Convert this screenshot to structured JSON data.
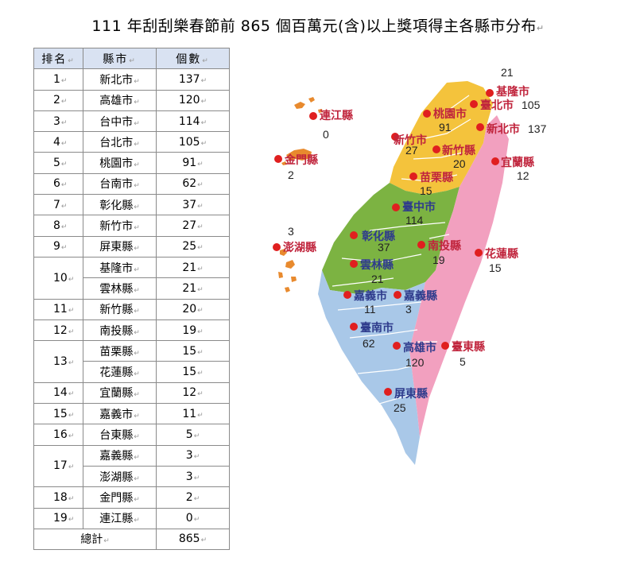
{
  "title": "111 年刮刮樂春節前 865 個百萬元(含)以上獎項得主各縣市分布",
  "table": {
    "headers": [
      "排名",
      "縣市",
      "個數"
    ],
    "rows": [
      {
        "rank": "1",
        "county": "新北市",
        "count": "137"
      },
      {
        "rank": "2",
        "county": "高雄市",
        "count": "120"
      },
      {
        "rank": "3",
        "county": "台中市",
        "count": "114"
      },
      {
        "rank": "4",
        "county": "台北市",
        "count": "105"
      },
      {
        "rank": "5",
        "county": "桃園市",
        "count": "91"
      },
      {
        "rank": "6",
        "county": "台南市",
        "count": "62"
      },
      {
        "rank": "7",
        "county": "彰化縣",
        "count": "37"
      },
      {
        "rank": "8",
        "county": "新竹市",
        "count": "27"
      },
      {
        "rank": "9",
        "county": "屏東縣",
        "count": "25"
      },
      {
        "rank": "10",
        "county": "基隆市",
        "count": "21"
      },
      {
        "rank": "",
        "county": "雲林縣",
        "count": "21"
      },
      {
        "rank": "11",
        "county": "新竹縣",
        "count": "20"
      },
      {
        "rank": "12",
        "county": "南投縣",
        "count": "19"
      },
      {
        "rank": "13",
        "county": "苗栗縣",
        "count": "15"
      },
      {
        "rank": "",
        "county": "花蓮縣",
        "count": "15"
      },
      {
        "rank": "14",
        "county": "宜蘭縣",
        "count": "12"
      },
      {
        "rank": "15",
        "county": "嘉義市",
        "count": "11"
      },
      {
        "rank": "16",
        "county": "台東縣",
        "count": "5"
      },
      {
        "rank": "17",
        "county": "嘉義縣",
        "count": "3"
      },
      {
        "rank": "",
        "county": "澎湖縣",
        "count": "3"
      },
      {
        "rank": "18",
        "county": "金門縣",
        "count": "2"
      },
      {
        "rank": "19",
        "county": "連江縣",
        "count": "0"
      }
    ],
    "total_label": "總計",
    "total_value": "865"
  },
  "map": {
    "colors": {
      "north": "#f4c33c",
      "central": "#7cb342",
      "south": "#a9c8e8",
      "east": "#f2a0bf",
      "islands": "#e88a2e",
      "dot": "#e01f1f",
      "label": "#c0243c",
      "center_label": "#2e3b8c"
    },
    "labels": [
      {
        "name": "連江縣",
        "value": "0"
      },
      {
        "name": "金門縣",
        "value": "2"
      },
      {
        "name": "澎湖縣",
        "value": "3"
      },
      {
        "name": "基隆市",
        "value": "21"
      },
      {
        "name": "臺北市",
        "value": "105"
      },
      {
        "name": "新北市",
        "value": "137"
      },
      {
        "name": "桃園市",
        "value": "91"
      },
      {
        "name": "新竹市",
        "value": "27"
      },
      {
        "name": "新竹縣",
        "value": "20"
      },
      {
        "name": "宜蘭縣",
        "value": "12"
      },
      {
        "name": "苗栗縣",
        "value": "15"
      },
      {
        "name": "臺中市",
        "value": "114"
      },
      {
        "name": "彰化縣",
        "value": "37"
      },
      {
        "name": "南投縣",
        "value": "19"
      },
      {
        "name": "花蓮縣",
        "value": "15"
      },
      {
        "name": "雲林縣",
        "value": "21"
      },
      {
        "name": "嘉義市",
        "value": "11"
      },
      {
        "name": "嘉義縣",
        "value": "3"
      },
      {
        "name": "臺南市",
        "value": "62"
      },
      {
        "name": "高雄市",
        "value": "120"
      },
      {
        "name": "臺東縣",
        "value": "5"
      },
      {
        "name": "屏東縣",
        "value": "25"
      }
    ]
  }
}
